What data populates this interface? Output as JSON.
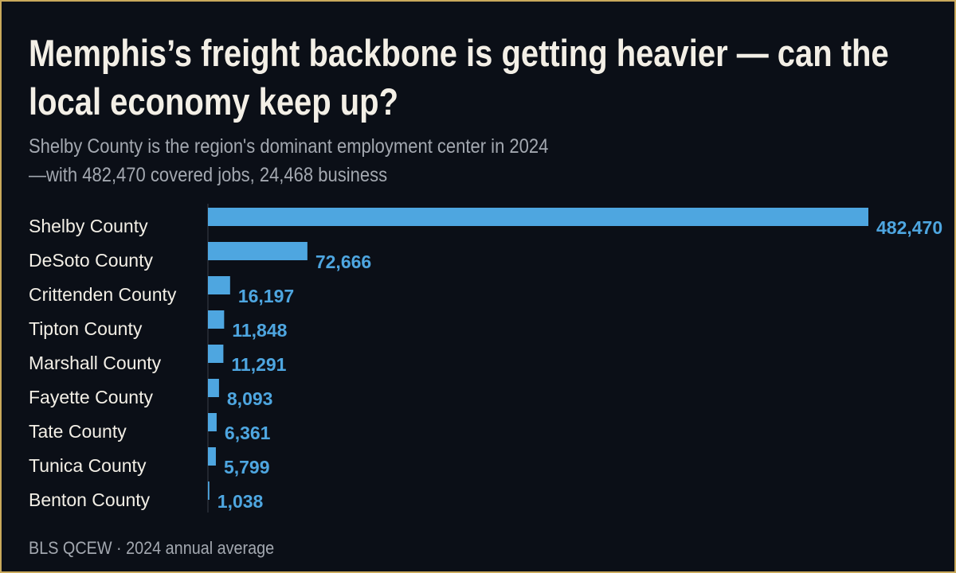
{
  "chart_data": {
    "type": "bar",
    "orientation": "horizontal",
    "title": "Memphis’s freight backbone is getting heavier — can the local economy keep up?",
    "subtitle": "Shelby County is the region's dominant employment center in 2024—with 482,470 covered jobs, 24,468 business",
    "source": "BLS QCEW · 2024 annual average",
    "categories": [
      "Shelby County",
      "DeSoto County",
      "Crittenden County",
      "Tipton County",
      "Marshall County",
      "Fayette County",
      "Tate County",
      "Tunica County",
      "Benton County"
    ],
    "values": [
      482470,
      72666,
      16197,
      11848,
      11291,
      8093,
      6361,
      5799,
      1038
    ],
    "value_labels": [
      "482,470",
      "72,666",
      "16,197",
      "11,848",
      "11,291",
      "8,093",
      "6,361",
      "5,799",
      "1,038"
    ],
    "color": "#4ea6e0"
  }
}
